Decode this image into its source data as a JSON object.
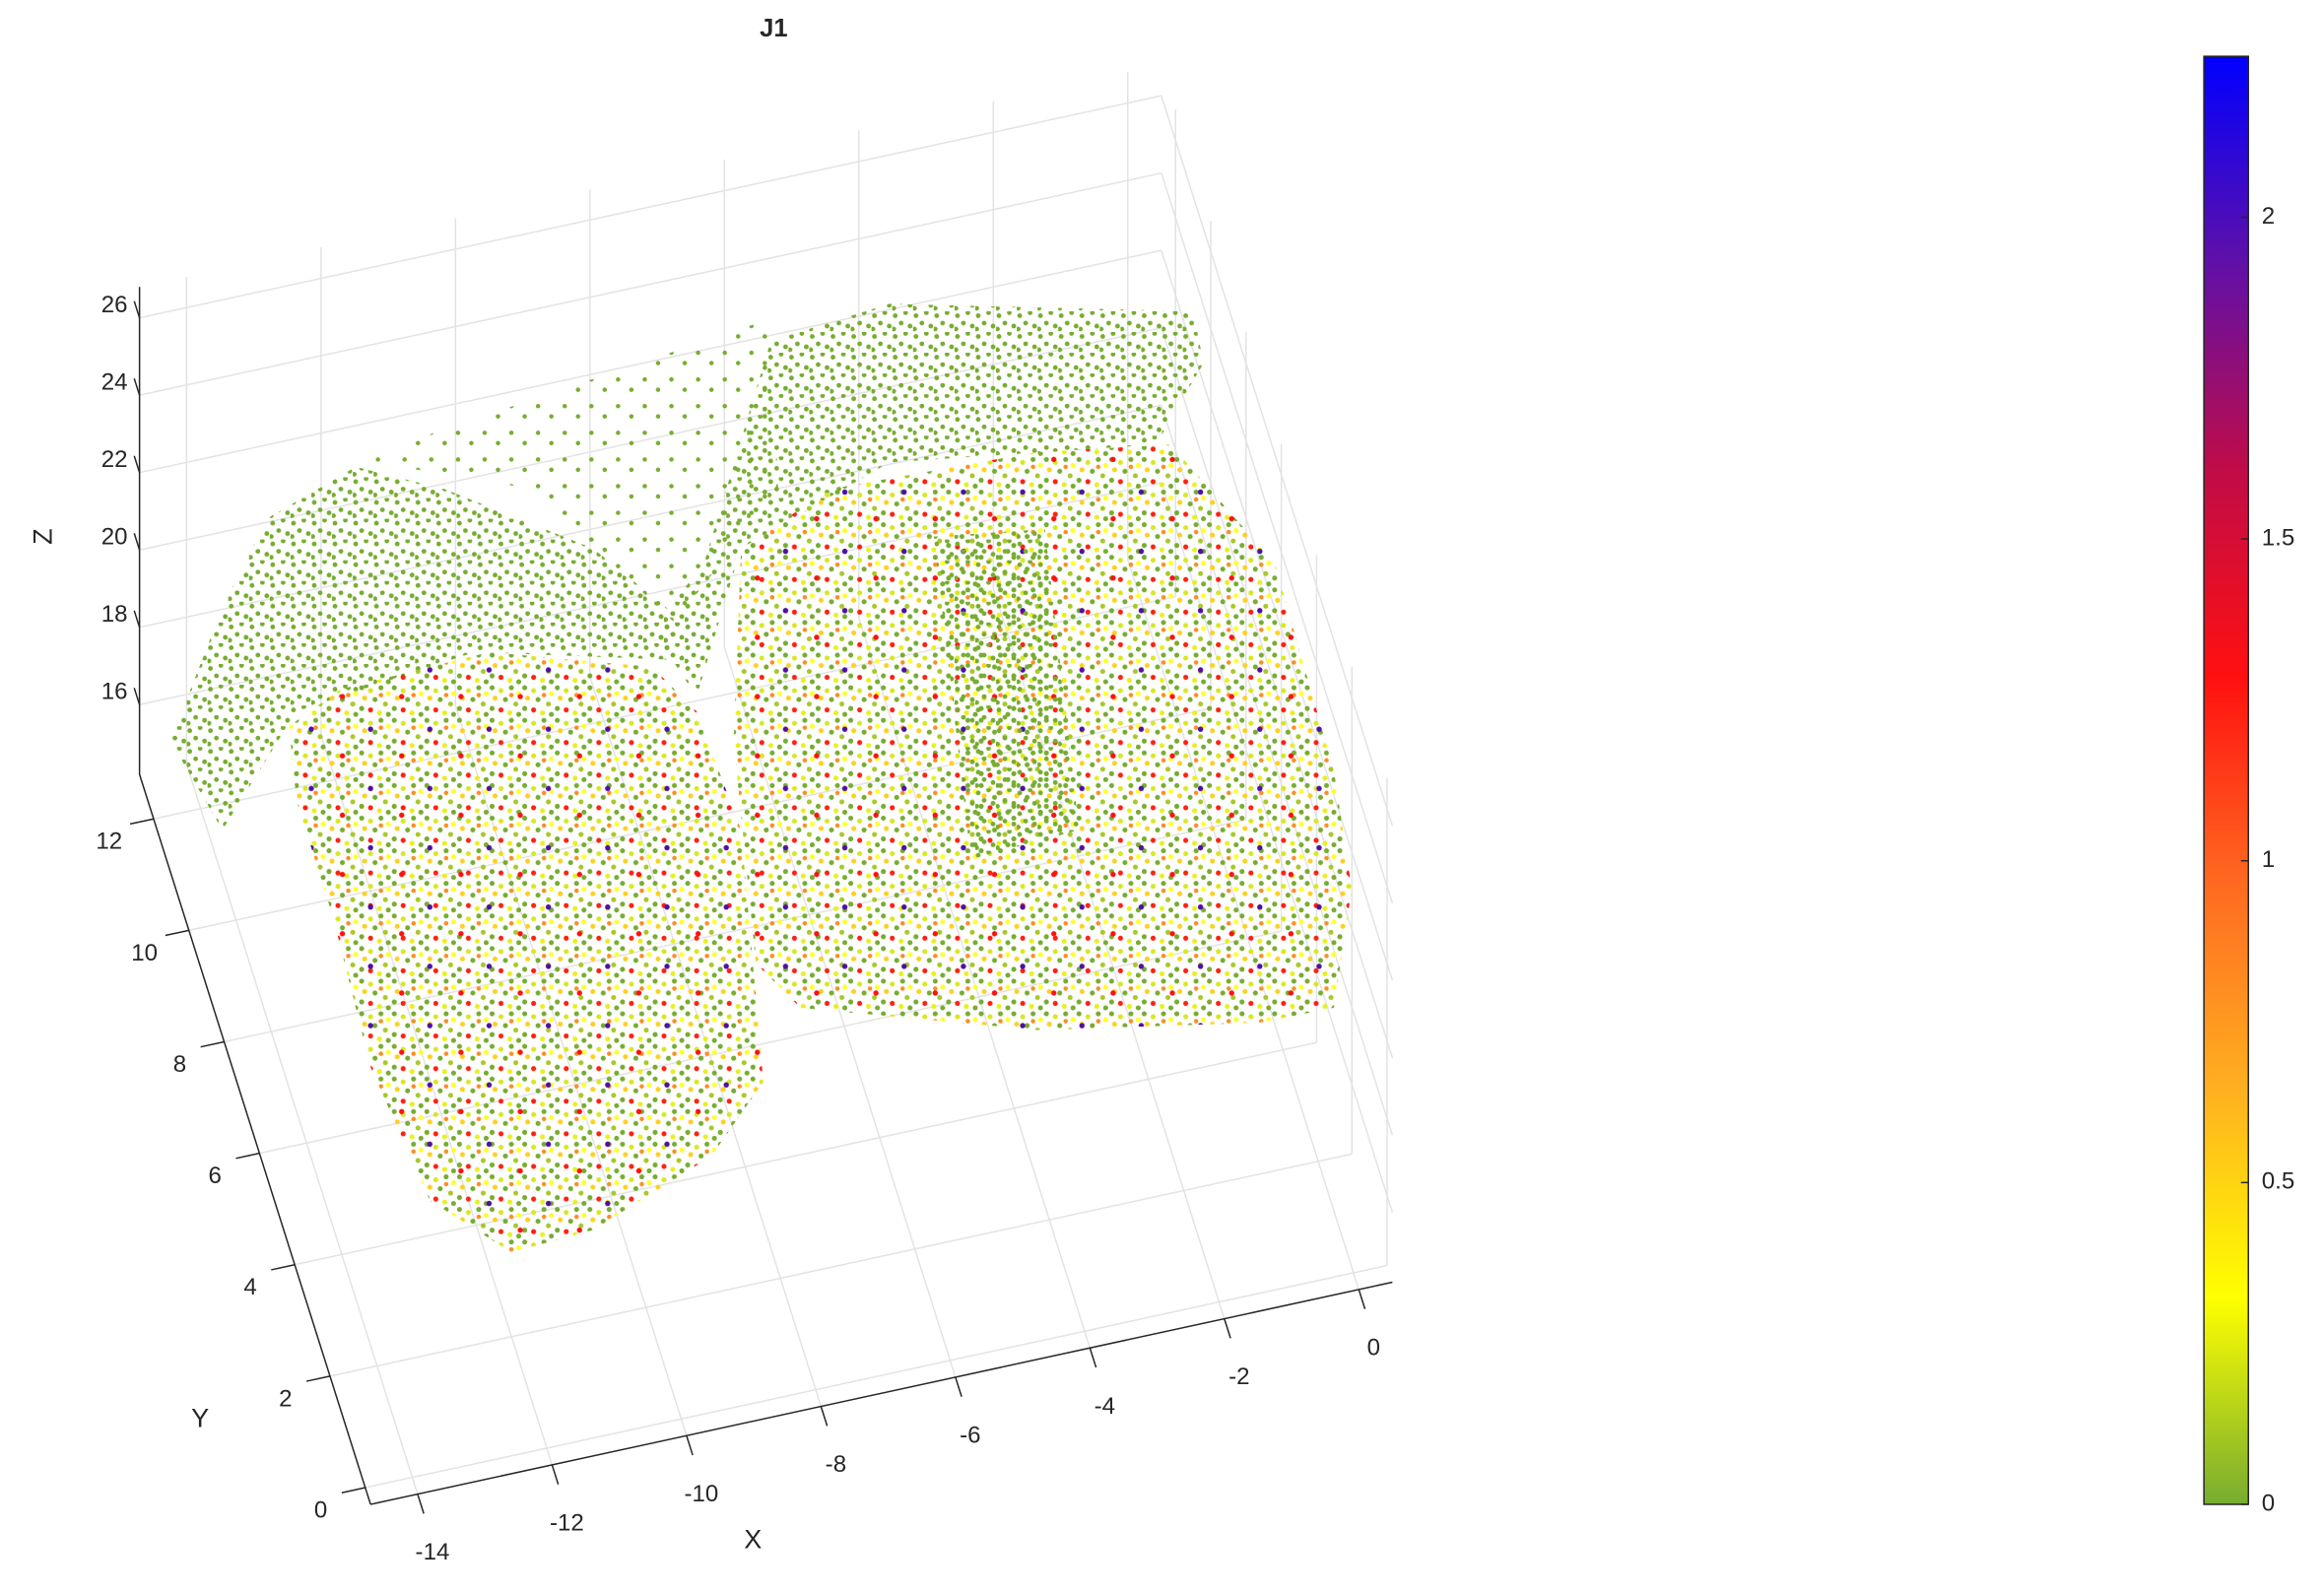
{
  "chart_data": {
    "type": "scatter3d",
    "title": "J1",
    "xlabel": "X",
    "ylabel": "Y",
    "zlabel": "Z",
    "xlim": [
      -14.7,
      0.5
    ],
    "ylim": [
      -0.3,
      12.8
    ],
    "zlim": [
      14.2,
      26.8
    ],
    "xticks": [
      -14,
      -12,
      -10,
      -8,
      -6,
      -4,
      -2,
      0
    ],
    "yticks": [
      0,
      2,
      4,
      6,
      8,
      10,
      12
    ],
    "zticks": [
      16,
      18,
      20,
      22,
      24,
      26
    ],
    "grid": true,
    "colorbar": {
      "clim": [
        0,
        2.25
      ],
      "ticks": [
        0,
        0.5,
        1,
        1.5,
        2
      ],
      "colormap": [
        "#77ac30",
        "#ffff00",
        "#ffb020",
        "#ff6a20",
        "#ff1010",
        "#c00c48",
        "#6010a8",
        "#0000ff"
      ]
    }
  }
}
